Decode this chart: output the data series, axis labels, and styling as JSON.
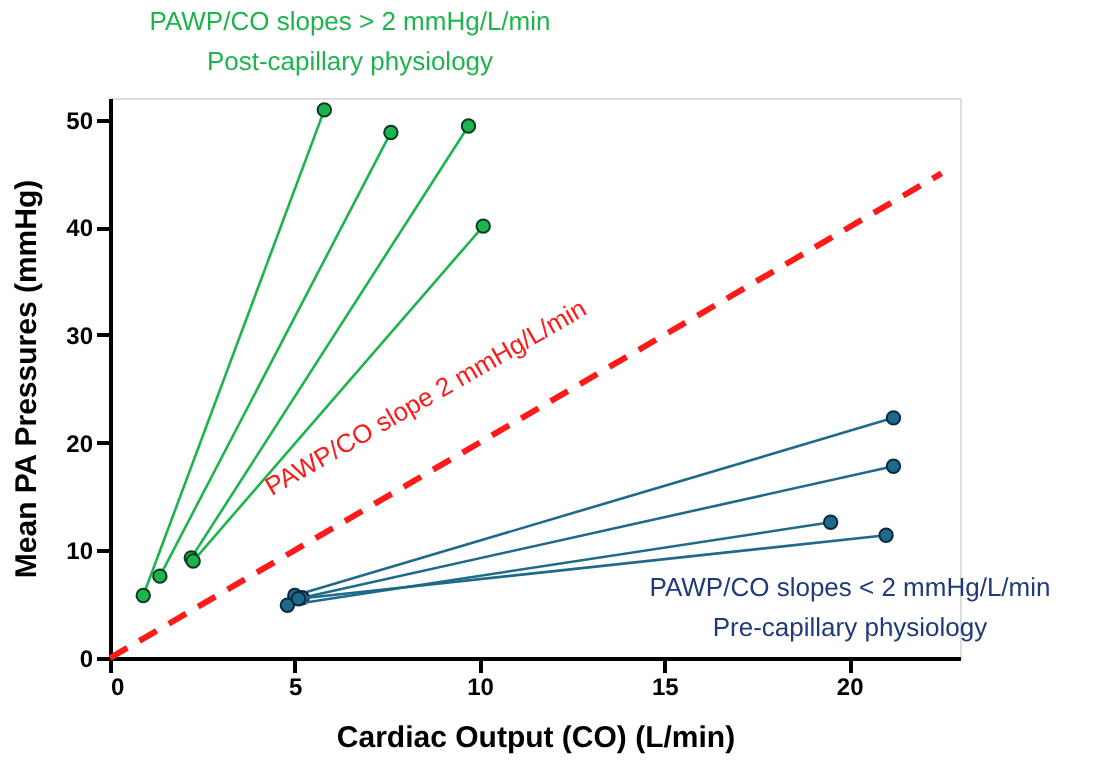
{
  "chart_data": {
    "type": "line",
    "xlabel": "Cardiac Output  (CO) (L/min)",
    "ylabel": "Mean PA Pressures  (mmHg)",
    "xlim": [
      0,
      23
    ],
    "ylim": [
      0,
      52
    ],
    "xticks": [
      0,
      5,
      10,
      15,
      20
    ],
    "yticks": [
      0,
      10,
      20,
      30,
      40,
      50
    ],
    "grid": false,
    "marker": "circle",
    "line_style": "solid",
    "series": [
      {
        "color": "#1db34d",
        "x": [
          0.9,
          5.8
        ],
        "values": [
          5.8,
          50.9
        ]
      },
      {
        "color": "#1db34d",
        "x": [
          1.35,
          7.6
        ],
        "values": [
          7.6,
          48.8
        ]
      },
      {
        "color": "#1db34d",
        "x": [
          2.2,
          9.7
        ],
        "values": [
          9.3,
          49.4
        ]
      },
      {
        "color": "#1db34d",
        "x": [
          2.25,
          10.1
        ],
        "values": [
          9.0,
          40.1
        ]
      },
      {
        "color": "#1f6a8a",
        "x": [
          5.0,
          21.2
        ],
        "values": [
          5.8,
          22.3
        ]
      },
      {
        "color": "#1f6a8a",
        "x": [
          5.2,
          21.2
        ],
        "values": [
          5.6,
          17.8
        ]
      },
      {
        "color": "#1f6a8a",
        "x": [
          4.8,
          19.5
        ],
        "values": [
          4.9,
          12.6
        ]
      },
      {
        "color": "#1f6a8a",
        "x": [
          5.1,
          21.0
        ],
        "values": [
          5.5,
          11.4
        ]
      },
      {
        "color": "#ff1a1a",
        "x": [
          0,
          22.5
        ],
        "values": [
          0,
          45
        ],
        "marker": "none",
        "line_style": "dashed"
      }
    ],
    "annotations": [
      "PAWP/CO slopes > 2 mmHg/L/min",
      "Post-capillary physiology",
      "PAWP/CO slope 2 mmHg/L/min",
      "PAWP/CO slopes < 2 mmHg/L/min",
      "Pre-capillary physiology"
    ]
  }
}
